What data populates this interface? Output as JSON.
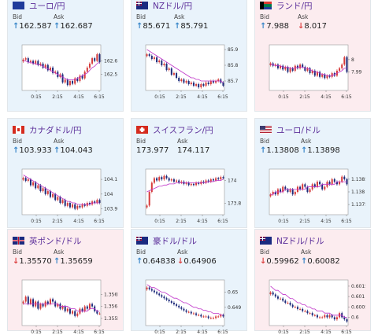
{
  "labels": {
    "bid": "Bid",
    "ask": "Ask"
  },
  "cards": [
    {
      "id": "eur-jpy",
      "title": "ユーロ/円",
      "flag": "eu",
      "bg": "blue",
      "bid": "162.587",
      "ask": "162.687",
      "bid_dir": "up",
      "ask_dir": "up",
      "yticks": [
        "162.6",
        "162.5"
      ],
      "xticks": [
        "0:15",
        "2:15",
        "4:15",
        "6:15"
      ],
      "chart_data": {
        "type": "candlestick",
        "ylim": [
          162.38,
          162.72
        ],
        "x_labels": [
          "0:15",
          "2:15",
          "4:15",
          "6:15"
        ],
        "close": [
          162.61,
          162.62,
          162.59,
          162.6,
          162.58,
          162.6,
          162.57,
          162.58,
          162.55,
          162.57,
          162.53,
          162.55,
          162.51,
          162.52,
          162.48,
          162.5,
          162.44,
          162.46,
          162.42,
          162.45,
          162.43,
          162.47,
          162.45,
          162.49,
          162.47,
          162.52,
          162.55,
          162.58,
          162.62,
          162.6,
          162.65,
          162.59
        ],
        "ma": [
          162.6,
          162.6,
          162.59,
          162.59,
          162.58,
          162.58,
          162.57,
          162.57,
          162.56,
          162.55,
          162.54,
          162.53,
          162.52,
          162.51,
          162.5,
          162.49,
          162.48,
          162.47,
          162.46,
          162.46,
          162.46,
          162.46,
          162.47,
          162.48,
          162.49,
          162.5,
          162.51,
          162.53,
          162.55,
          162.56,
          162.58,
          162.59
        ]
      }
    },
    {
      "id": "nzd-jpy",
      "title": "NZドル/円",
      "flag": "nz",
      "bg": "blue",
      "bid": "85.671",
      "ask": "85.791",
      "bid_dir": "up",
      "ask_dir": "up",
      "yticks": [
        "85.9",
        "85.8",
        "85.7"
      ],
      "xticks": [
        "0:15",
        "2:15",
        "4:15",
        "6:15"
      ],
      "chart_data": {
        "type": "candlestick",
        "ylim": [
          85.64,
          85.93
        ],
        "x_labels": [
          "0:15",
          "2:15",
          "4:15",
          "6:15"
        ],
        "close": [
          85.87,
          85.86,
          85.84,
          85.85,
          85.82,
          85.83,
          85.8,
          85.81,
          85.77,
          85.78,
          85.74,
          85.75,
          85.72,
          85.7,
          85.71,
          85.69,
          85.7,
          85.68,
          85.69,
          85.67,
          85.68,
          85.66,
          85.68,
          85.67,
          85.69,
          85.68,
          85.7,
          85.69,
          85.7,
          85.71,
          85.69,
          85.67
        ],
        "ma": [
          85.9,
          85.89,
          85.88,
          85.87,
          85.86,
          85.85,
          85.84,
          85.83,
          85.82,
          85.81,
          85.8,
          85.79,
          85.78,
          85.77,
          85.76,
          85.75,
          85.74,
          85.73,
          85.72,
          85.72,
          85.71,
          85.71,
          85.7,
          85.7,
          85.7,
          85.7,
          85.7,
          85.7,
          85.7,
          85.7,
          85.7,
          85.69
        ]
      }
    },
    {
      "id": "zar-jpy",
      "title": "ランド/円",
      "flag": "za",
      "bg": "pink",
      "bid": "7.988",
      "ask": "8.017",
      "bid_dir": "up",
      "ask_dir": "down",
      "yticks": [
        "8",
        "7.99"
      ],
      "xticks": [
        "0:15",
        "2:15",
        "4:15",
        "6:15"
      ],
      "chart_data": {
        "type": "candlestick",
        "ylim": [
          7.975,
          8.012
        ],
        "x_labels": [
          "0:15",
          "2:15",
          "4:15",
          "6:15"
        ],
        "close": [
          7.997,
          7.995,
          7.996,
          7.993,
          7.995,
          7.992,
          7.994,
          7.99,
          7.993,
          7.991,
          7.995,
          7.993,
          7.996,
          7.994,
          7.991,
          7.993,
          7.989,
          7.991,
          7.987,
          7.99,
          7.986,
          7.988,
          7.985,
          7.987,
          7.986,
          7.989,
          7.987,
          7.991,
          7.993,
          7.996,
          8.002,
          7.99
        ],
        "ma": [
          7.996,
          7.996,
          7.995,
          7.995,
          7.995,
          7.994,
          7.994,
          7.994,
          7.993,
          7.993,
          7.993,
          7.994,
          7.994,
          7.994,
          7.993,
          7.993,
          7.992,
          7.991,
          7.99,
          7.99,
          7.989,
          7.988,
          7.988,
          7.987,
          7.987,
          7.987,
          7.988,
          7.989,
          7.99,
          7.991,
          7.993,
          7.993
        ]
      }
    },
    {
      "id": "cad-jpy",
      "title": "カナダドル/円",
      "flag": "ca",
      "bg": "blue",
      "bid": "103.933",
      "ask": "104.043",
      "bid_dir": "up",
      "ask_dir": "up",
      "yticks": [
        "104.1",
        "104",
        "103.9"
      ],
      "xticks": [
        "0:15",
        "2:15",
        "4:15",
        "6:15"
      ],
      "chart_data": {
        "type": "candlestick",
        "ylim": [
          103.86,
          104.17
        ],
        "x_labels": [
          "0:15",
          "2:15",
          "4:15",
          "6:15"
        ],
        "close": [
          104.11,
          104.09,
          104.1,
          104.06,
          104.08,
          104.04,
          104.06,
          104.02,
          104.04,
          104.0,
          104.02,
          103.98,
          104.0,
          103.96,
          103.98,
          103.94,
          103.96,
          103.92,
          103.94,
          103.91,
          103.93,
          103.9,
          103.92,
          103.91,
          103.93,
          103.92,
          103.94,
          103.93,
          103.95,
          103.94,
          103.96,
          103.94
        ],
        "ma": [
          104.13,
          104.12,
          104.11,
          104.1,
          104.09,
          104.08,
          104.07,
          104.06,
          104.05,
          104.04,
          104.03,
          104.02,
          104.01,
          104.0,
          103.99,
          103.98,
          103.97,
          103.96,
          103.95,
          103.95,
          103.94,
          103.94,
          103.93,
          103.93,
          103.93,
          103.93,
          103.93,
          103.93,
          103.94,
          103.94,
          103.94,
          103.94
        ]
      }
    },
    {
      "id": "chf-jpy",
      "title": "スイスフラン/円",
      "flag": "ch",
      "bg": "blue",
      "bid": "173.977",
      "ask": "174.117",
      "bid_dir": "",
      "ask_dir": "",
      "yticks": [
        "174",
        "173.8"
      ],
      "xticks": [
        "0:15",
        "2:15",
        "4:15",
        "6:15"
      ],
      "chart_data": {
        "type": "candlestick",
        "ylim": [
          173.7,
          174.1
        ],
        "x_labels": [
          "0:15",
          "2:15",
          "4:15",
          "6:15"
        ],
        "close": [
          173.78,
          173.9,
          173.98,
          174.02,
          174.0,
          174.03,
          174.01,
          174.04,
          174.02,
          174.0,
          174.01,
          173.99,
          174.0,
          173.98,
          173.99,
          173.97,
          173.98,
          173.96,
          173.97,
          173.96,
          173.98,
          173.97,
          173.99,
          173.98,
          174.0,
          173.99,
          174.01,
          174.0,
          174.02,
          174.01,
          174.03,
          174.02
        ],
        "ma": [
          173.9,
          173.91,
          173.92,
          173.93,
          173.94,
          173.95,
          173.95,
          173.96,
          173.96,
          173.97,
          173.97,
          173.97,
          173.98,
          173.98,
          173.98,
          173.98,
          173.98,
          173.98,
          173.98,
          173.98,
          173.98,
          173.98,
          173.98,
          173.98,
          173.98,
          173.99,
          173.99,
          173.99,
          174.0,
          174.0,
          174.0,
          174.01
        ]
      }
    },
    {
      "id": "eur-usd",
      "title": "ユーロ/ドル",
      "flag": "us",
      "bg": "blue",
      "bid": "1.13808",
      "ask": "1.13898",
      "bid_dir": "up",
      "ask_dir": "up",
      "yticks": [
        "1.1385",
        "1.138",
        "1.1375"
      ],
      "xticks": [
        "0:15",
        "2:15",
        "4:15",
        "6:15"
      ],
      "chart_data": {
        "type": "candlestick",
        "ylim": [
          1.1371,
          1.1389
        ],
        "x_labels": [
          "0:15",
          "2:15",
          "4:15",
          "6:15"
        ],
        "close": [
          1.1379,
          1.138,
          1.1379,
          1.1381,
          1.138,
          1.1382,
          1.1381,
          1.138,
          1.1381,
          1.1379,
          1.138,
          1.1382,
          1.1381,
          1.1383,
          1.1382,
          1.138,
          1.1381,
          1.1383,
          1.1382,
          1.1384,
          1.1383,
          1.1381,
          1.1382,
          1.1384,
          1.1383,
          1.1385,
          1.1384,
          1.1383,
          1.1384,
          1.1386,
          1.1385,
          1.1383
        ],
        "ma": [
          1.1379,
          1.1379,
          1.138,
          1.138,
          1.138,
          1.138,
          1.1381,
          1.1381,
          1.1381,
          1.1381,
          1.1381,
          1.1381,
          1.1381,
          1.1381,
          1.1381,
          1.1382,
          1.1382,
          1.1382,
          1.1382,
          1.1382,
          1.1382,
          1.1383,
          1.1383,
          1.1383,
          1.1383,
          1.1383,
          1.1383,
          1.1384,
          1.1384,
          1.1384,
          1.1384,
          1.1384
        ]
      }
    },
    {
      "id": "gbp-usd",
      "title": "英ポンド/ドル",
      "flag": "gb",
      "bg": "pink",
      "bid": "1.35570",
      "ask": "1.35659",
      "bid_dir": "down",
      "ask_dir": "up",
      "yticks": [
        "1.3565",
        "1.356",
        "1.3555"
      ],
      "xticks": [
        "0:15",
        "2:15",
        "4:15",
        "6:15"
      ],
      "chart_data": {
        "type": "candlestick",
        "ylim": [
          1.3552,
          1.3571
        ],
        "x_labels": [
          "0:15",
          "2:15",
          "4:15",
          "6:15"
        ],
        "close": [
          1.3562,
          1.3564,
          1.3561,
          1.3563,
          1.356,
          1.3562,
          1.3559,
          1.3561,
          1.356,
          1.3562,
          1.3561,
          1.3563,
          1.3562,
          1.356,
          1.3561,
          1.3559,
          1.356,
          1.3558,
          1.3559,
          1.3557,
          1.3558,
          1.3556,
          1.3557,
          1.3559,
          1.3558,
          1.356,
          1.3559,
          1.3561,
          1.356,
          1.3558,
          1.3557,
          1.3557
        ],
        "ma": [
          1.3561,
          1.3561,
          1.3561,
          1.3561,
          1.3561,
          1.3561,
          1.3561,
          1.3561,
          1.3561,
          1.3561,
          1.3561,
          1.3561,
          1.3561,
          1.3561,
          1.3561,
          1.356,
          1.356,
          1.356,
          1.356,
          1.3559,
          1.3559,
          1.3559,
          1.3558,
          1.3558,
          1.3558,
          1.3558,
          1.3558,
          1.3559,
          1.3559,
          1.3559,
          1.3558,
          1.3558
        ]
      }
    },
    {
      "id": "aud-usd",
      "title": "豪ドル/ドル",
      "flag": "au",
      "bg": "blue",
      "bid": "0.64838",
      "ask": "0.64906",
      "bid_dir": "up",
      "ask_dir": "down",
      "yticks": [
        "0.65",
        "0.649"
      ],
      "xticks": [
        "0:15",
        "2:15",
        "4:15",
        "6:15"
      ],
      "chart_data": {
        "type": "candlestick",
        "ylim": [
          0.6478,
          0.6508
        ],
        "x_labels": [
          "0:15",
          "2:15",
          "4:15",
          "6:15"
        ],
        "close": [
          0.6503,
          0.6502,
          0.6501,
          0.65,
          0.6499,
          0.6498,
          0.6497,
          0.6496,
          0.6495,
          0.6494,
          0.6493,
          0.6492,
          0.6491,
          0.649,
          0.6489,
          0.6488,
          0.6487,
          0.6487,
          0.6486,
          0.6486,
          0.6485,
          0.6485,
          0.6484,
          0.6484,
          0.6484,
          0.6483,
          0.6483,
          0.6483,
          0.6484,
          0.6484,
          0.6485,
          0.6484
        ],
        "ma": [
          0.6505,
          0.6504,
          0.6503,
          0.6503,
          0.6502,
          0.6501,
          0.65,
          0.65,
          0.6499,
          0.6498,
          0.6497,
          0.6496,
          0.6496,
          0.6495,
          0.6494,
          0.6493,
          0.6493,
          0.6492,
          0.6491,
          0.649,
          0.649,
          0.6489,
          0.6489,
          0.6488,
          0.6488,
          0.6487,
          0.6487,
          0.6486,
          0.6486,
          0.6486,
          0.6485,
          0.6485
        ]
      }
    },
    {
      "id": "nzd-usd",
      "title": "NZドル/ドル",
      "flag": "nz",
      "bg": "pink",
      "bid": "0.59962",
      "ask": "0.60082",
      "bid_dir": "down",
      "ask_dir": "up",
      "yticks": [
        "0.6015",
        "0.601",
        "0.6005",
        "0.6"
      ],
      "xticks": [
        "0:15",
        "2:15",
        "4:15",
        "6:15"
      ],
      "chart_data": {
        "type": "candlestick",
        "ylim": [
          0.5996,
          0.6018
        ],
        "x_labels": [
          "0:15",
          "2:15",
          "4:15",
          "6:15"
        ],
        "close": [
          0.6012,
          0.6011,
          0.601,
          0.6009,
          0.6009,
          0.6008,
          0.6007,
          0.6007,
          0.6006,
          0.6005,
          0.6005,
          0.6004,
          0.6004,
          0.6003,
          0.6003,
          0.6002,
          0.6002,
          0.6001,
          0.6001,
          0.6,
          0.6,
          0.6,
          0.6001,
          0.6,
          0.6001,
          0.6,
          0.5999,
          0.6,
          0.6002,
          0.6,
          0.5999,
          0.5998
        ],
        "ma": [
          0.6015,
          0.6014,
          0.6013,
          0.6013,
          0.6012,
          0.6011,
          0.6011,
          0.601,
          0.6009,
          0.6009,
          0.6008,
          0.6007,
          0.6007,
          0.6006,
          0.6006,
          0.6005,
          0.6005,
          0.6004,
          0.6004,
          0.6003,
          0.6003,
          0.6003,
          0.6002,
          0.6002,
          0.6002,
          0.6001,
          0.6001,
          0.6001,
          0.6001,
          0.6001,
          0.6,
          0.6
        ]
      }
    }
  ],
  "colors": {
    "up": "#d63a3a",
    "down": "#1d2a7a",
    "ma": "#c035c9",
    "axis": "#888888",
    "title": "#5c2f9a",
    "arrow_up": "#3a87c9",
    "arrow_down": "#d44444"
  }
}
